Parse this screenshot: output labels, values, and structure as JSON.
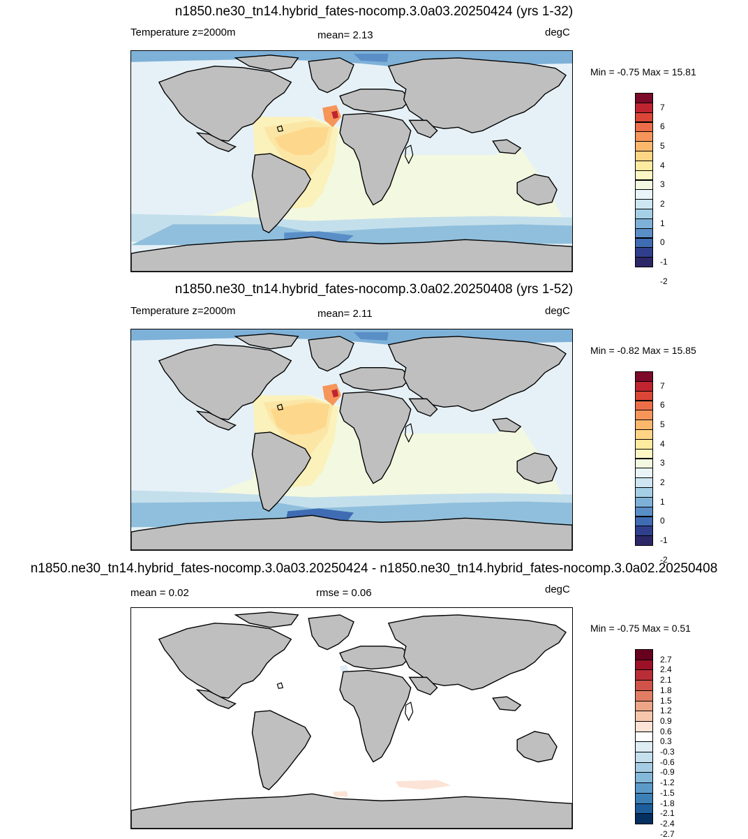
{
  "panels": [
    {
      "title": "n1850.ne30_tn14.hybrid_fates-nocomp.3.0a03.20250424 (yrs 1-32)",
      "left_label": "Temperature z=2000m",
      "mid_label": "mean=   2.13",
      "units": "degC",
      "minmax": "Min =  -0.75 Max =  15.81",
      "colorbar": {
        "colors": [
          "#2c2766",
          "#303f8c",
          "#3f6cb3",
          "#5a8ec7",
          "#7eb1d8",
          "#a5cfe6",
          "#cde6f1",
          "#e9f4f8",
          "#f3f8e0",
          "#fbf6c4",
          "#fdeba0",
          "#fdd585",
          "#fbb86d",
          "#f6955a",
          "#ec6e48",
          "#db4636",
          "#bf2430",
          "#7c0a28"
        ],
        "ticks": [
          "7",
          "6",
          "5",
          "4",
          "3",
          "2",
          "1",
          "0",
          "-1",
          "-2"
        ]
      }
    },
    {
      "title": "n1850.ne30_tn14.hybrid_fates-nocomp.3.0a02.20250408 (yrs 1-52)",
      "left_label": "Temperature z=2000m",
      "mid_label": "mean=   2.11",
      "units": "degC",
      "minmax": "Min =  -0.82 Max =  15.85",
      "colorbar": {
        "colors": [
          "#2c2766",
          "#303f8c",
          "#3f6cb3",
          "#5a8ec7",
          "#7eb1d8",
          "#a5cfe6",
          "#cde6f1",
          "#e9f4f8",
          "#f3f8e0",
          "#fbf6c4",
          "#fdeba0",
          "#fdd585",
          "#fbb86d",
          "#f6955a",
          "#ec6e48",
          "#db4636",
          "#bf2430",
          "#7c0a28"
        ],
        "ticks": [
          "7",
          "6",
          "5",
          "4",
          "3",
          "2",
          "1",
          "0",
          "-1",
          "-2"
        ]
      }
    },
    {
      "title": "n1850.ne30_tn14.hybrid_fates-nocomp.3.0a03.20250424 - n1850.ne30_tn14.hybrid_fates-nocomp.3.0a02.20250408",
      "left_label": "mean =   0.02",
      "mid_label": "rmse =   0.06",
      "units": "degC",
      "minmax": "Min =  -0.75 Max =   0.51",
      "colorbar": {
        "colors": [
          "#053061",
          "#1d5d9b",
          "#3b81b8",
          "#5b9bca",
          "#84b8d9",
          "#a6cce3",
          "#c6dfed",
          "#deecf4",
          "#ffffff",
          "#fbe3d6",
          "#f6c6ac",
          "#eda588",
          "#e07e64",
          "#cf5348",
          "#b92d36",
          "#9c1127",
          "#67001f"
        ],
        "ticks": [
          "2.7",
          "2.4",
          "2.1",
          "1.8",
          "1.5",
          "1.2",
          "0.9",
          "0.6",
          "0.3",
          "-0.3",
          "-0.6",
          "-0.9",
          "-1.2",
          "-1.5",
          "-1.8",
          "-2.1",
          "-2.4",
          "-2.7"
        ]
      }
    }
  ]
}
